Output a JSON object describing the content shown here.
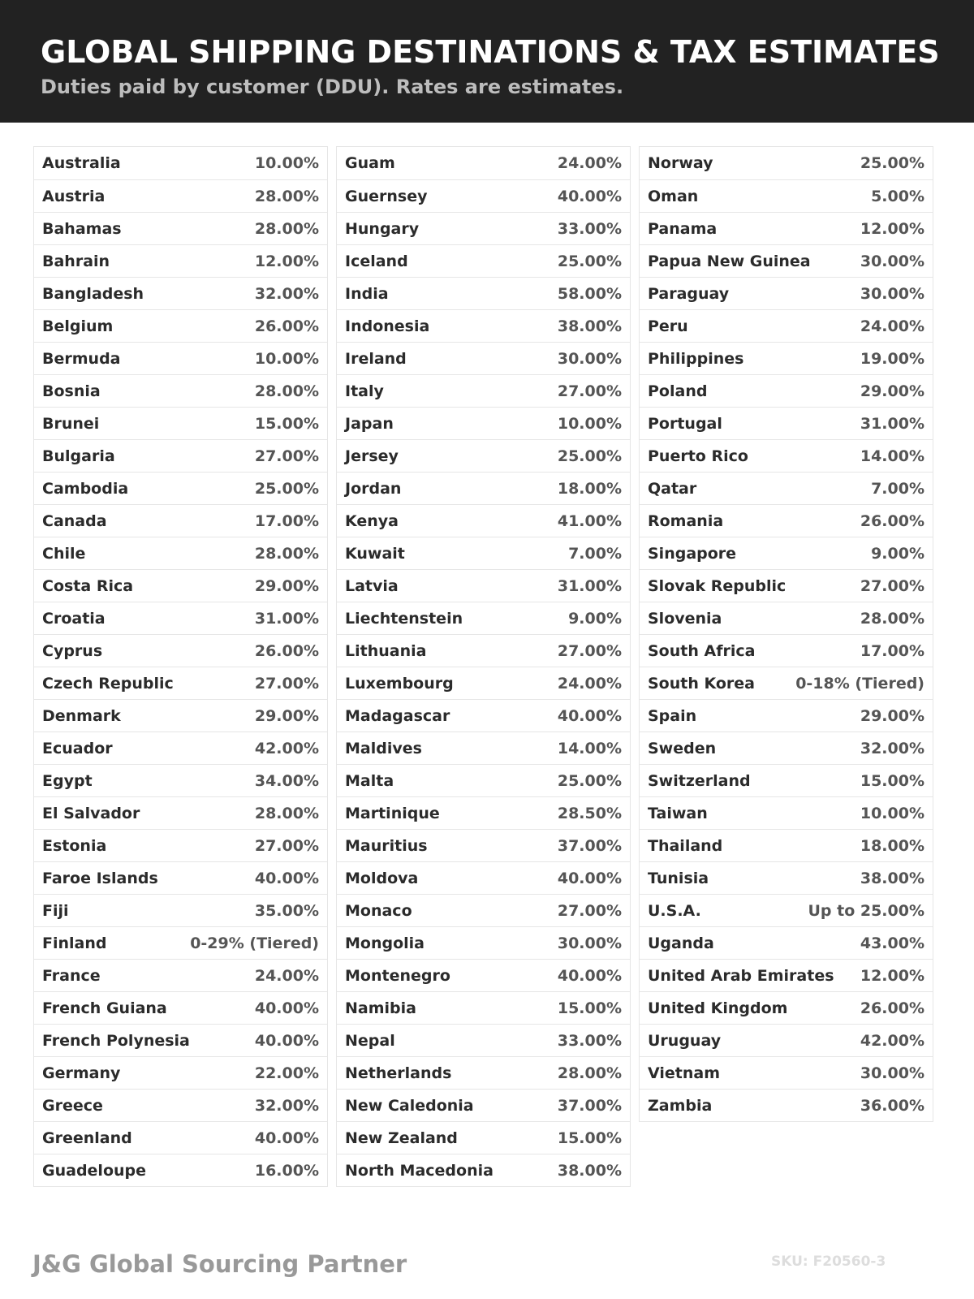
{
  "header": {
    "title": "GLOBAL SHIPPING DESTINATIONS & TAX ESTIMATES",
    "subtitle": "Duties paid by customer (DDU). Rates are estimates."
  },
  "columns": [
    [
      [
        "Australia",
        "10.00%"
      ],
      [
        "Austria",
        "28.00%"
      ],
      [
        "Bahamas",
        "28.00%"
      ],
      [
        "Bahrain",
        "12.00%"
      ],
      [
        "Bangladesh",
        "32.00%"
      ],
      [
        "Belgium",
        "26.00%"
      ],
      [
        "Bermuda",
        "10.00%"
      ],
      [
        "Bosnia",
        "28.00%"
      ],
      [
        "Brunei",
        "15.00%"
      ],
      [
        "Bulgaria",
        "27.00%"
      ],
      [
        "Cambodia",
        "25.00%"
      ],
      [
        "Canada",
        "17.00%"
      ],
      [
        "Chile",
        "28.00%"
      ],
      [
        "Costa Rica",
        "29.00%"
      ],
      [
        "Croatia",
        "31.00%"
      ],
      [
        "Cyprus",
        "26.00%"
      ],
      [
        "Czech Republic",
        "27.00%"
      ],
      [
        "Denmark",
        "29.00%"
      ],
      [
        "Ecuador",
        "42.00%"
      ],
      [
        "Egypt",
        "34.00%"
      ],
      [
        "El Salvador",
        "28.00%"
      ],
      [
        "Estonia",
        "27.00%"
      ],
      [
        "Faroe Islands",
        "40.00%"
      ],
      [
        "Fiji",
        "35.00%"
      ],
      [
        "Finland",
        "0-29% (Tiered)"
      ],
      [
        "France",
        "24.00%"
      ],
      [
        "French Guiana",
        "40.00%"
      ],
      [
        "French Polynesia",
        "40.00%"
      ],
      [
        "Germany",
        "22.00%"
      ],
      [
        "Greece",
        "32.00%"
      ],
      [
        "Greenland",
        "40.00%"
      ],
      [
        "Guadeloupe",
        "16.00%"
      ]
    ],
    [
      [
        "Guam",
        "24.00%"
      ],
      [
        "Guernsey",
        "40.00%"
      ],
      [
        "Hungary",
        "33.00%"
      ],
      [
        "Iceland",
        "25.00%"
      ],
      [
        "India",
        "58.00%"
      ],
      [
        "Indonesia",
        "38.00%"
      ],
      [
        "Ireland",
        "30.00%"
      ],
      [
        "Italy",
        "27.00%"
      ],
      [
        "Japan",
        "10.00%"
      ],
      [
        "Jersey",
        "25.00%"
      ],
      [
        "Jordan",
        "18.00%"
      ],
      [
        "Kenya",
        "41.00%"
      ],
      [
        "Kuwait",
        "7.00%"
      ],
      [
        "Latvia",
        "31.00%"
      ],
      [
        "Liechtenstein",
        "9.00%"
      ],
      [
        "Lithuania",
        "27.00%"
      ],
      [
        "Luxembourg",
        "24.00%"
      ],
      [
        "Madagascar",
        "40.00%"
      ],
      [
        "Maldives",
        "14.00%"
      ],
      [
        "Malta",
        "25.00%"
      ],
      [
        "Martinique",
        "28.50%"
      ],
      [
        "Mauritius",
        "37.00%"
      ],
      [
        "Moldova",
        "40.00%"
      ],
      [
        "Monaco",
        "27.00%"
      ],
      [
        "Mongolia",
        "30.00%"
      ],
      [
        "Montenegro",
        "40.00%"
      ],
      [
        "Namibia",
        "15.00%"
      ],
      [
        "Nepal",
        "33.00%"
      ],
      [
        "Netherlands",
        "28.00%"
      ],
      [
        "New Caledonia",
        "37.00%"
      ],
      [
        "New Zealand",
        "15.00%"
      ],
      [
        "North Macedonia",
        "38.00%"
      ]
    ],
    [
      [
        "Norway",
        "25.00%"
      ],
      [
        "Oman",
        "5.00%"
      ],
      [
        "Panama",
        "12.00%"
      ],
      [
        "Papua New Guinea",
        "30.00%"
      ],
      [
        "Paraguay",
        "30.00%"
      ],
      [
        "Peru",
        "24.00%"
      ],
      [
        "Philippines",
        "19.00%"
      ],
      [
        "Poland",
        "29.00%"
      ],
      [
        "Portugal",
        "31.00%"
      ],
      [
        "Puerto Rico",
        "14.00%"
      ],
      [
        "Qatar",
        "7.00%"
      ],
      [
        "Romania",
        "26.00%"
      ],
      [
        "Singapore",
        "9.00%"
      ],
      [
        "Slovak Republic",
        "27.00%"
      ],
      [
        "Slovenia",
        "28.00%"
      ],
      [
        "South Africa",
        "17.00%"
      ],
      [
        "South Korea",
        "0-18% (Tiered)"
      ],
      [
        "Spain",
        "29.00%"
      ],
      [
        "Sweden",
        "32.00%"
      ],
      [
        "Switzerland",
        "15.00%"
      ],
      [
        "Taiwan",
        "10.00%"
      ],
      [
        "Thailand",
        "18.00%"
      ],
      [
        "Tunisia",
        "38.00%"
      ],
      [
        "U.S.A.",
        "Up to 25.00%"
      ],
      [
        "Uganda",
        "43.00%"
      ],
      [
        "United Arab Emirates",
        "12.00%"
      ],
      [
        "United Kingdom",
        "26.00%"
      ],
      [
        "Uruguay",
        "42.00%"
      ],
      [
        "Vietnam",
        "30.00%"
      ],
      [
        "Zambia",
        "36.00%"
      ]
    ]
  ],
  "footer": {
    "brand": "J&G Global Sourcing Partner",
    "sku": "SKU: F20560-3"
  }
}
